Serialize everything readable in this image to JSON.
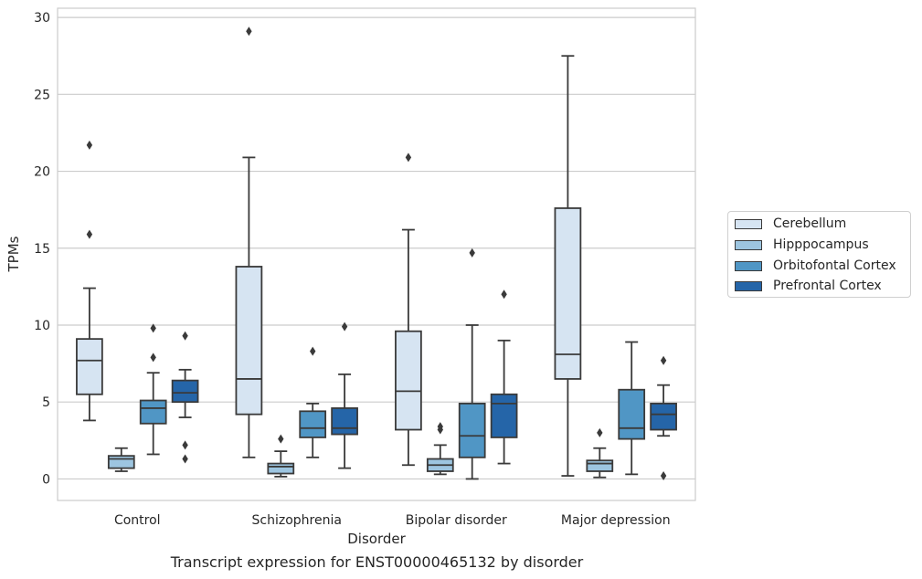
{
  "chart_data": {
    "type": "boxplot",
    "caption": "Transcript expression for ENST00000465132 by disorder",
    "xlabel": "Disorder",
    "ylabel": "TPMs",
    "ylim": [
      -1.4,
      30.6
    ],
    "yticks": [
      0,
      5,
      10,
      15,
      20,
      25,
      30
    ],
    "grid": "horizontal",
    "legend_position": "right",
    "categories": [
      "Control",
      "Schizophrenia",
      "Bipolar disorder",
      "Major depression"
    ],
    "series": [
      {
        "name": "Cerebellum",
        "color": "#d6e4f2",
        "boxes": [
          {
            "whislo": 3.8,
            "q1": 5.5,
            "med": 7.7,
            "q3": 9.1,
            "whishi": 12.4,
            "fliers": [
              15.9,
              21.7
            ]
          },
          {
            "whislo": 1.4,
            "q1": 4.2,
            "med": 6.5,
            "q3": 13.8,
            "whishi": 20.9,
            "fliers": [
              29.1
            ]
          },
          {
            "whislo": 0.9,
            "q1": 3.2,
            "med": 5.7,
            "q3": 9.6,
            "whishi": 16.2,
            "fliers": [
              20.9
            ]
          },
          {
            "whislo": 0.2,
            "q1": 6.5,
            "med": 8.1,
            "q3": 17.6,
            "whishi": 27.5,
            "fliers": []
          }
        ]
      },
      {
        "name": "Hipppocampus",
        "color": "#9dc5e0",
        "boxes": [
          {
            "whislo": 0.5,
            "q1": 0.7,
            "med": 1.3,
            "q3": 1.5,
            "whishi": 2.0,
            "fliers": []
          },
          {
            "whislo": 0.15,
            "q1": 0.35,
            "med": 0.8,
            "q3": 1.0,
            "whishi": 1.8,
            "fliers": [
              2.6
            ]
          },
          {
            "whislo": 0.3,
            "q1": 0.5,
            "med": 0.9,
            "q3": 1.3,
            "whishi": 2.2,
            "fliers": [
              3.2,
              3.4
            ]
          },
          {
            "whislo": 0.1,
            "q1": 0.5,
            "med": 1.0,
            "q3": 1.2,
            "whishi": 2.0,
            "fliers": [
              3.0
            ]
          }
        ]
      },
      {
        "name": "Orbitofontal Cortex",
        "color": "#5096c5",
        "boxes": [
          {
            "whislo": 1.6,
            "q1": 3.6,
            "med": 4.6,
            "q3": 5.1,
            "whishi": 6.9,
            "fliers": [
              7.9,
              9.8
            ]
          },
          {
            "whislo": 1.4,
            "q1": 2.7,
            "med": 3.3,
            "q3": 4.4,
            "whishi": 4.9,
            "fliers": [
              8.3
            ]
          },
          {
            "whislo": 0.0,
            "q1": 1.4,
            "med": 2.8,
            "q3": 4.9,
            "whishi": 10.0,
            "fliers": [
              14.7
            ]
          },
          {
            "whislo": 0.3,
            "q1": 2.6,
            "med": 3.3,
            "q3": 5.8,
            "whishi": 8.9,
            "fliers": []
          }
        ]
      },
      {
        "name": "Prefrontal Cortex",
        "color": "#2565a8",
        "boxes": [
          {
            "whislo": 4.0,
            "q1": 5.0,
            "med": 5.6,
            "q3": 6.4,
            "whishi": 7.1,
            "fliers": [
              1.3,
              2.2,
              9.3
            ]
          },
          {
            "whislo": 0.7,
            "q1": 2.9,
            "med": 3.3,
            "q3": 4.6,
            "whishi": 6.8,
            "fliers": [
              9.9
            ]
          },
          {
            "whislo": 1.0,
            "q1": 2.7,
            "med": 4.9,
            "q3": 5.5,
            "whishi": 9.0,
            "fliers": [
              12.0
            ]
          },
          {
            "whislo": 2.8,
            "q1": 3.2,
            "med": 4.2,
            "q3": 4.9,
            "whishi": 6.1,
            "fliers": [
              0.2,
              7.7
            ]
          }
        ]
      }
    ]
  }
}
